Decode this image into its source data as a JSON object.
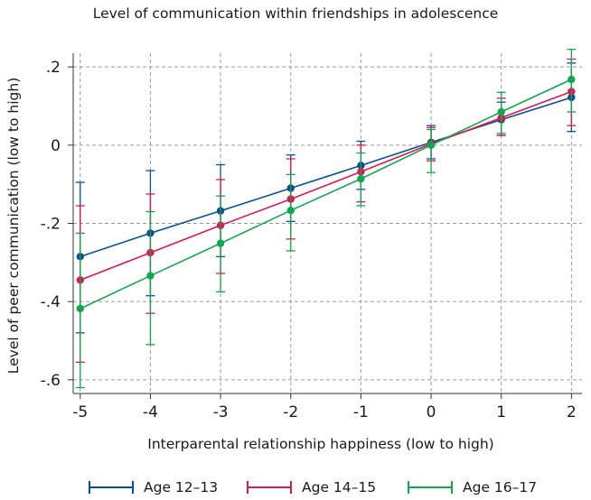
{
  "chart_data": {
    "type": "line",
    "title": "Level of communication within friendships in adolescence",
    "xlabel": "Interparental relationship happiness (low to high)",
    "ylabel": "Level of peer communication (low to high)",
    "x": [
      -5,
      -4,
      -3,
      -2,
      -1,
      0,
      1,
      2
    ],
    "xticks": [
      "-5",
      "-4",
      "-3",
      "-2",
      "-1",
      "0",
      "1",
      "2"
    ],
    "yticks": [
      {
        "value": 0.2,
        "label": ".2"
      },
      {
        "value": 0.0,
        "label": "0"
      },
      {
        "value": -0.2,
        "label": "-.2"
      },
      {
        "value": -0.4,
        "label": "-.4"
      },
      {
        "value": -0.6,
        "label": "-.6"
      }
    ],
    "xlim": [
      -5.1,
      2.15
    ],
    "ylim": [
      -0.635,
      0.235
    ],
    "grid": true,
    "legend_position": "bottom",
    "series": [
      {
        "name": "Age 12–13",
        "color": "#0b4f8f",
        "values": [
          -0.285,
          -0.225,
          -0.168,
          -0.11,
          -0.052,
          0.007,
          0.065,
          0.122
        ],
        "ci_low": [
          -0.48,
          -0.385,
          -0.285,
          -0.195,
          -0.113,
          -0.035,
          0.025,
          0.035
        ],
        "ci_high": [
          -0.095,
          -0.065,
          -0.05,
          -0.025,
          0.01,
          0.05,
          0.11,
          0.21
        ]
      },
      {
        "name": "Age 14–15",
        "color": "#d81a52",
        "values": [
          -0.345,
          -0.275,
          -0.205,
          -0.138,
          -0.068,
          0.003,
          0.07,
          0.137
        ],
        "ci_low": [
          -0.555,
          -0.43,
          -0.328,
          -0.24,
          -0.145,
          -0.04,
          0.025,
          0.05
        ],
        "ci_high": [
          -0.155,
          -0.125,
          -0.088,
          -0.035,
          0.0,
          0.045,
          0.12,
          0.22
        ]
      },
      {
        "name": "Age 16–17",
        "color": "#14a550",
        "values": [
          -0.418,
          -0.334,
          -0.251,
          -0.167,
          -0.086,
          0.0,
          0.085,
          0.168
        ],
        "ci_low": [
          -0.62,
          -0.51,
          -0.375,
          -0.27,
          -0.155,
          -0.07,
          0.03,
          0.085
        ],
        "ci_high": [
          -0.225,
          -0.17,
          -0.13,
          -0.075,
          -0.02,
          0.04,
          0.135,
          0.245
        ]
      }
    ]
  }
}
